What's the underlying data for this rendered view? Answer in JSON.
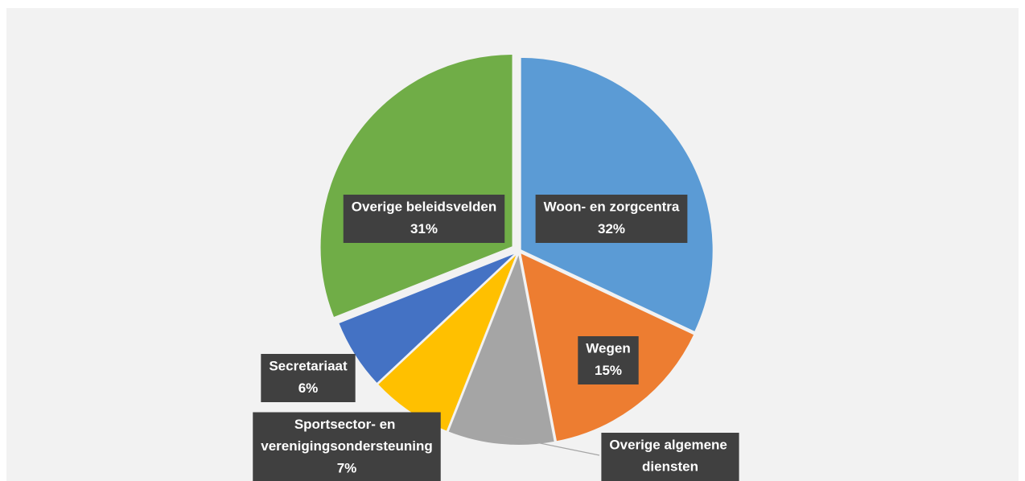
{
  "chart_data": {
    "type": "pie",
    "categories": [
      "Woon- en zorgcentra",
      "Wegen",
      "Overige algemene diensten",
      "Sportsector- en verenigingsondersteuning",
      "Secretariaat",
      "Overige beleidsvelden"
    ],
    "values": [
      32,
      15,
      9,
      7,
      6,
      31
    ],
    "value_labels": [
      "32%",
      "15%",
      null,
      "7%",
      "6%",
      "31%"
    ],
    "colors": [
      "#5b9bd5",
      "#ed7d31",
      "#a5a5a5",
      "#ffc000",
      "#4472c4",
      "#70ad47"
    ]
  }
}
